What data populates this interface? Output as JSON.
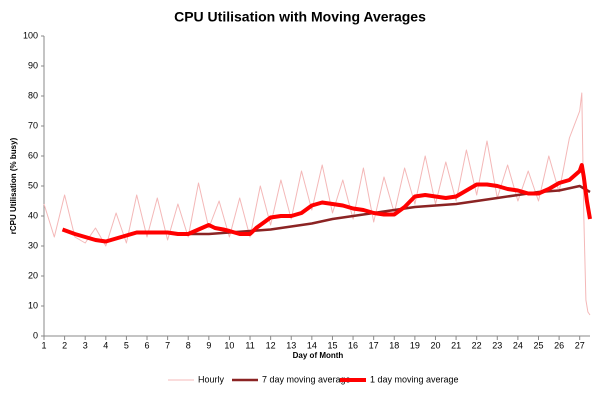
{
  "chart_data": {
    "type": "line",
    "title": "CPU Utilisation with Moving Averages",
    "x_label": "Day of Month",
    "y_label": "rCPU Utilisation (% busy)",
    "xlim": [
      1,
      27.5
    ],
    "xticks": [
      1,
      2,
      3,
      4,
      5,
      6,
      7,
      8,
      9,
      10,
      11,
      12,
      13,
      14,
      15,
      16,
      17,
      18,
      19,
      20,
      21,
      22,
      23,
      24,
      25,
      26,
      27
    ],
    "ylim": [
      0,
      100
    ],
    "yticks": [
      0,
      10,
      20,
      30,
      40,
      50,
      60,
      70,
      80,
      90,
      100
    ],
    "grid": false,
    "legend": "bottom",
    "series": [
      {
        "name": "Hourly",
        "color": "#f4b8b8",
        "width": 1,
        "x": [
          1,
          1.5,
          2,
          2.5,
          3,
          3.5,
          4,
          4.5,
          5,
          5.5,
          6,
          6.5,
          7,
          7.5,
          8,
          8.5,
          9,
          9.5,
          10,
          10.5,
          11,
          11.5,
          12,
          12.5,
          13,
          13.5,
          14,
          14.5,
          15,
          15.5,
          16,
          16.5,
          17,
          17.5,
          18,
          18.5,
          19,
          19.5,
          20,
          20.5,
          21,
          21.5,
          22,
          22.5,
          23,
          23.5,
          24,
          24.5,
          25,
          25.5,
          26,
          26.5,
          27,
          27.1,
          27.2,
          27.3,
          27.4,
          27.5
        ],
        "values": [
          44,
          33,
          47,
          33,
          31,
          36,
          30,
          41,
          31,
          47,
          33,
          46,
          32,
          44,
          33,
          51,
          36,
          45,
          33,
          46,
          33,
          50,
          37,
          52,
          39,
          55,
          42,
          57,
          41,
          52,
          39,
          56,
          38,
          53,
          41,
          56,
          44,
          60,
          44,
          58,
          45,
          62,
          47,
          65,
          46,
          57,
          45,
          55,
          45,
          60,
          48,
          66,
          75,
          81,
          40,
          12,
          8,
          7
        ]
      },
      {
        "name": "7 day moving average",
        "color": "#8b2323",
        "width": 2.5,
        "x": [
          8,
          9,
          10,
          11,
          12,
          13,
          14,
          15,
          16,
          17,
          18,
          19,
          20,
          21,
          22,
          23,
          24,
          25,
          26,
          27,
          27.5
        ],
        "values": [
          34,
          34,
          34.5,
          35,
          35.5,
          36.5,
          37.5,
          39,
          40,
          41,
          42,
          43,
          43.5,
          44,
          45,
          46,
          47,
          48,
          48.5,
          50,
          48
        ]
      },
      {
        "name": "1 day moving average",
        "color": "#ff0000",
        "width": 4,
        "x": [
          1.9,
          2.5,
          3,
          3.5,
          4,
          4.5,
          5,
          5.5,
          6,
          6.5,
          7,
          7.5,
          8,
          8.5,
          9,
          9.3,
          9.7,
          10,
          10.5,
          11,
          11.3,
          11.7,
          12,
          12.5,
          13,
          13.5,
          14,
          14.5,
          15,
          15.5,
          16,
          16.5,
          17,
          17.5,
          18,
          18.5,
          19,
          19.5,
          20,
          20.5,
          21,
          21.5,
          22,
          22.5,
          23,
          23.5,
          24,
          24.5,
          25,
          25.5,
          26,
          26.5,
          27,
          27.1,
          27.2,
          27.35,
          27.5
        ],
        "values": [
          35.5,
          34,
          33,
          32,
          31.5,
          32.5,
          33.5,
          34.5,
          34.5,
          34.5,
          34.5,
          34,
          34,
          35.5,
          37,
          36,
          35.5,
          35,
          34,
          34,
          36,
          38,
          39.5,
          40,
          40,
          41,
          43.5,
          44.5,
          44,
          43.5,
          42.5,
          42,
          41,
          40.5,
          40.5,
          43,
          46.5,
          47,
          46.5,
          46,
          46.5,
          48.5,
          50.5,
          50.5,
          50,
          49,
          48.5,
          47.5,
          47.5,
          49,
          51,
          52,
          55,
          57,
          53,
          45,
          39
        ]
      }
    ]
  }
}
